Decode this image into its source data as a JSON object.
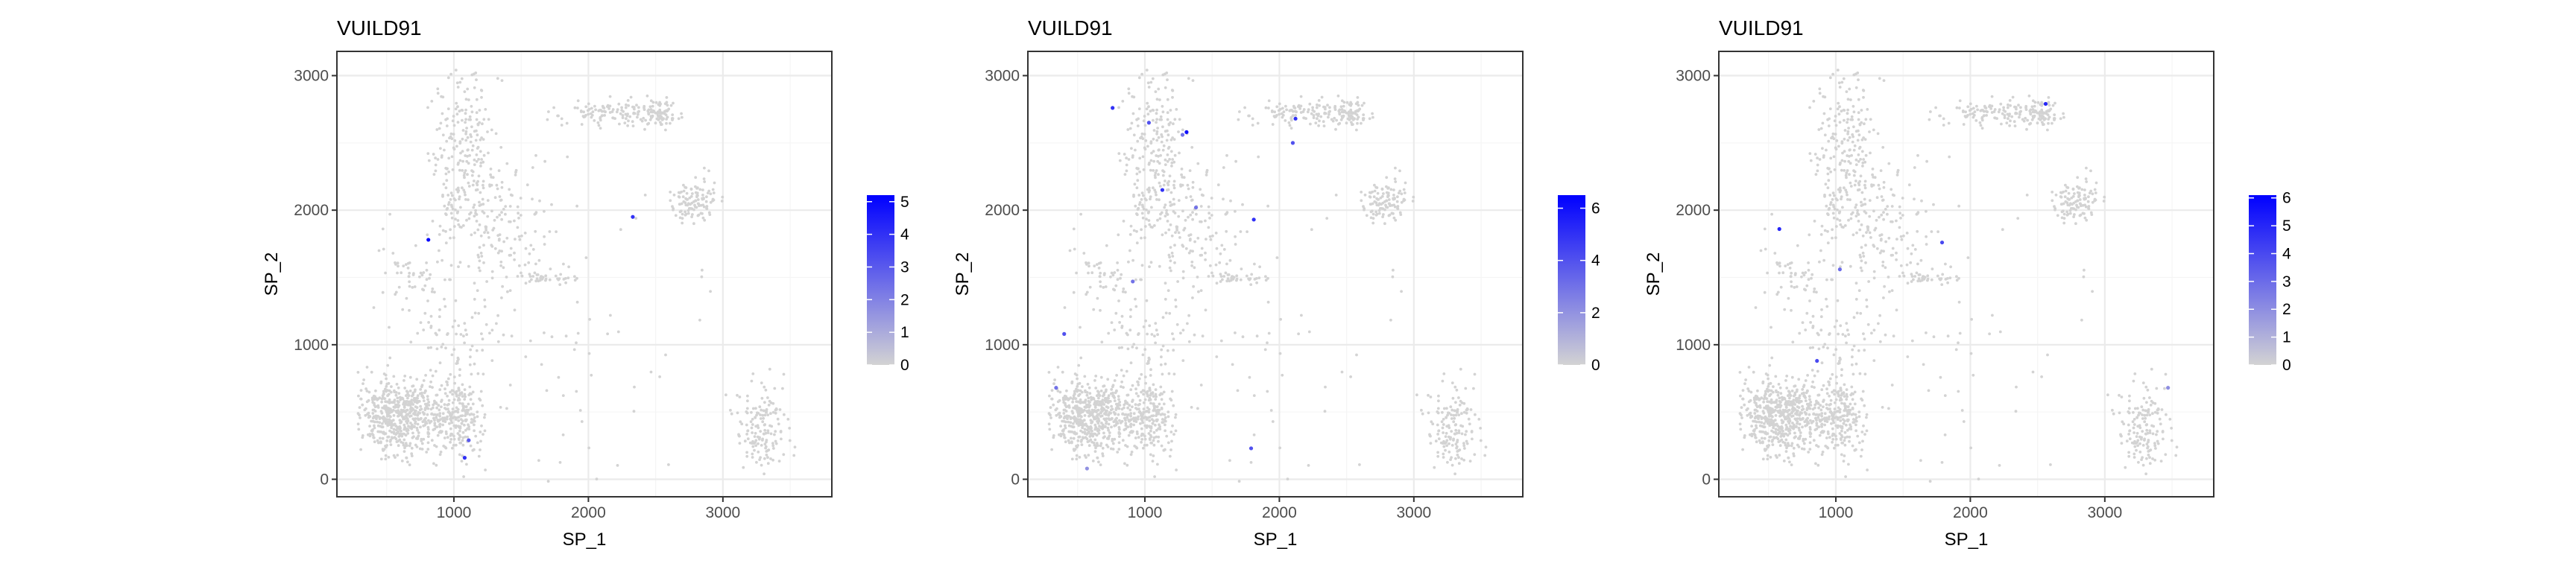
{
  "chart_data": [
    {
      "type": "scatter",
      "title": "VUILD91",
      "xlabel": "SP_1",
      "ylabel": "SP_2",
      "xlim": [
        130,
        3810
      ],
      "ylim": [
        -130,
        3180
      ],
      "xticks": [
        1000,
        2000,
        3000
      ],
      "yticks": [
        0,
        1000,
        2000,
        3000
      ],
      "grid": true,
      "legend_placement": "right",
      "color_scale": {
        "low": "#d3d3d3",
        "high": "#0000ff",
        "min": 0,
        "max": 5.2,
        "ticks": [
          0,
          1,
          2,
          3,
          4,
          5
        ]
      },
      "highlighted_points": [
        {
          "x": 810,
          "y": 1780,
          "value": 5
        },
        {
          "x": 2330,
          "y": 1950,
          "value": 4
        },
        {
          "x": 1110,
          "y": 290,
          "value": 3
        },
        {
          "x": 1080,
          "y": 160,
          "value": 4
        }
      ]
    },
    {
      "type": "scatter",
      "title": "VUILD91",
      "xlabel": "SP_1",
      "ylabel": "SP_2",
      "xlim": [
        130,
        3810
      ],
      "ylim": [
        -130,
        3180
      ],
      "xticks": [
        1000,
        2000,
        3000
      ],
      "yticks": [
        0,
        1000,
        2000,
        3000
      ],
      "grid": true,
      "legend_placement": "right",
      "color_scale": {
        "low": "#d3d3d3",
        "high": "#0000ff",
        "min": 0,
        "max": 6.5,
        "ticks": [
          0,
          2,
          4,
          6
        ]
      },
      "highlighted_points": [
        {
          "x": 760,
          "y": 2760,
          "value": 5
        },
        {
          "x": 1030,
          "y": 2650,
          "value": 4
        },
        {
          "x": 1310,
          "y": 2580,
          "value": 6
        },
        {
          "x": 1280,
          "y": 2560,
          "value": 3
        },
        {
          "x": 2120,
          "y": 2680,
          "value": 5
        },
        {
          "x": 2100,
          "y": 2500,
          "value": 4
        },
        {
          "x": 1130,
          "y": 2150,
          "value": 5
        },
        {
          "x": 1380,
          "y": 2020,
          "value": 3
        },
        {
          "x": 1810,
          "y": 1930,
          "value": 5
        },
        {
          "x": 910,
          "y": 1470,
          "value": 3
        },
        {
          "x": 400,
          "y": 1080,
          "value": 4
        },
        {
          "x": 340,
          "y": 680,
          "value": 3
        },
        {
          "x": 1790,
          "y": 230,
          "value": 4
        },
        {
          "x": 570,
          "y": 80,
          "value": 2
        }
      ]
    },
    {
      "type": "scatter",
      "title": "VUILD91",
      "xlabel": "SP_1",
      "ylabel": "SP_2",
      "xlim": [
        130,
        3810
      ],
      "ylim": [
        -130,
        3180
      ],
      "xticks": [
        1000,
        2000,
        3000
      ],
      "yticks": [
        0,
        1000,
        2000,
        3000
      ],
      "grid": true,
      "legend_placement": "right",
      "color_scale": {
        "low": "#d3d3d3",
        "high": "#0000ff",
        "min": 0,
        "max": 6.1,
        "ticks": [
          0,
          1,
          2,
          3,
          4,
          5,
          6
        ]
      },
      "highlighted_points": [
        {
          "x": 2560,
          "y": 2790,
          "value": 5
        },
        {
          "x": 580,
          "y": 1860,
          "value": 5
        },
        {
          "x": 1790,
          "y": 1760,
          "value": 4
        },
        {
          "x": 1030,
          "y": 1560,
          "value": 3
        },
        {
          "x": 860,
          "y": 880,
          "value": 4
        },
        {
          "x": 3470,
          "y": 680,
          "value": 2
        }
      ]
    }
  ]
}
